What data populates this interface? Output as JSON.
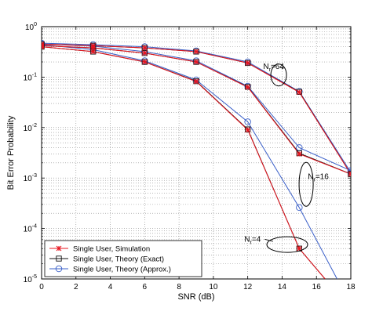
{
  "chart_data": {
    "type": "line",
    "xlabel": "SNR (dB)",
    "ylabel": "Bit Error Probability",
    "xlim": [
      0,
      18
    ],
    "ylim": [
      1e-05,
      1
    ],
    "yscale": "log",
    "grid": true,
    "legend_position": "bottom-left",
    "x_ticks": [
      0,
      2,
      4,
      6,
      8,
      10,
      12,
      14,
      16,
      18
    ],
    "y_ticks": [
      {
        "value": 1e-05,
        "base": "10",
        "exp": "-5"
      },
      {
        "value": 0.0001,
        "base": "10",
        "exp": "-4"
      },
      {
        "value": 0.001,
        "base": "10",
        "exp": "-3"
      },
      {
        "value": 0.01,
        "base": "10",
        "exp": "-2"
      },
      {
        "value": 0.1,
        "base": "10",
        "exp": "-1"
      },
      {
        "value": 1,
        "base": "10",
        "exp": "0"
      }
    ],
    "series": [
      {
        "name": "Single User, Simulation",
        "group": "Nr=4",
        "style": "sim",
        "x": [
          0,
          3,
          6,
          9,
          12,
          15,
          16.5
        ],
        "y": [
          0.4,
          0.32,
          0.2,
          0.082,
          0.009,
          4e-05,
          1e-05
        ]
      },
      {
        "name": "Single User, Theory (Exact)",
        "group": "Nr=4",
        "style": "exact",
        "x": [
          0,
          3,
          6,
          9,
          12,
          15,
          16.5
        ],
        "y": [
          0.4,
          0.32,
          0.2,
          0.083,
          0.0092,
          4e-05,
          1e-05
        ]
      },
      {
        "name": "Single User, Theory (Approx.)",
        "group": "Nr=4",
        "style": "approx",
        "x": [
          0,
          3,
          6,
          9,
          12,
          15,
          17.2
        ],
        "y": [
          0.44,
          0.35,
          0.21,
          0.088,
          0.013,
          0.00026,
          1e-05
        ]
      },
      {
        "name": "Single User, Simulation",
        "group": "Nr=16",
        "style": "sim",
        "x": [
          0,
          3,
          6,
          9,
          12,
          15,
          18
        ],
        "y": [
          0.42,
          0.38,
          0.3,
          0.2,
          0.063,
          0.003,
          0.0012
        ]
      },
      {
        "name": "Single User, Theory (Exact)",
        "group": "Nr=16",
        "style": "exact",
        "x": [
          0,
          3,
          6,
          9,
          12,
          15,
          18
        ],
        "y": [
          0.42,
          0.38,
          0.3,
          0.2,
          0.064,
          0.0031,
          0.0012
        ]
      },
      {
        "name": "Single User, Theory (Approx.)",
        "group": "Nr=16",
        "style": "approx",
        "x": [
          0,
          3,
          6,
          9,
          12,
          15,
          18
        ],
        "y": [
          0.45,
          0.41,
          0.32,
          0.21,
          0.066,
          0.004,
          0.0014
        ]
      },
      {
        "name": "Single User, Simulation",
        "group": "Nr=64",
        "style": "sim",
        "x": [
          0,
          3,
          6,
          9,
          12,
          15,
          18
        ],
        "y": [
          0.45,
          0.42,
          0.38,
          0.32,
          0.19,
          0.05,
          0.0012
        ]
      },
      {
        "name": "Single User, Theory (Exact)",
        "group": "Nr=64",
        "style": "exact",
        "x": [
          0,
          3,
          6,
          9,
          12,
          15,
          18
        ],
        "y": [
          0.45,
          0.42,
          0.38,
          0.32,
          0.19,
          0.051,
          0.0012
        ]
      },
      {
        "name": "Single User, Theory (Approx.)",
        "group": "Nr=64",
        "style": "approx",
        "x": [
          0,
          3,
          6,
          9,
          12,
          15,
          18
        ],
        "y": [
          0.47,
          0.44,
          0.4,
          0.33,
          0.2,
          0.052,
          0.0013
        ]
      }
    ],
    "legend": [
      {
        "label": "Single User, Simulation",
        "style": "sim"
      },
      {
        "label": "Single User, Theory (Exact)",
        "style": "exact"
      },
      {
        "label": "Single User, Theory (Approx.)",
        "style": "approx"
      }
    ],
    "annotations": [
      {
        "base": "N",
        "sub": "r",
        "suffix": "=64",
        "x": 12.9,
        "y": 0.145,
        "ellipse_x": 13.8,
        "ellipse_y": 0.11
      },
      {
        "base": "N",
        "sub": "r",
        "suffix": "=16",
        "x": 15.5,
        "y": 0.00095,
        "ellipse_x": 15.4,
        "ellipse_y": 0.00075
      },
      {
        "base": "N",
        "sub": "r",
        "suffix": "=4",
        "x": 11.8,
        "y": 5.5e-05,
        "ellipse_x": 14.3,
        "ellipse_y": 4.8e-05
      }
    ],
    "colors": {
      "sim": "#e8141e",
      "exact": "#111111",
      "approx": "#3a5fc8"
    }
  }
}
